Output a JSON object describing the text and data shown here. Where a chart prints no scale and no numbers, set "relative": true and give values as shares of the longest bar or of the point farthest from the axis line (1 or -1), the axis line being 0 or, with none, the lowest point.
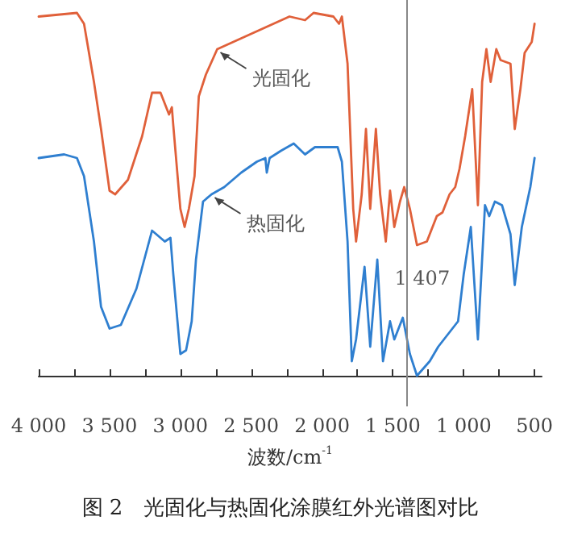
{
  "chart_data": {
    "type": "line",
    "title": "图 2　光固化与热固化涂膜红外光谱图对比",
    "xlabel": "波数/cm$^{-1}$",
    "relative": true,
    "grid": false,
    "marker": "none",
    "tick_labels": "x",
    "xlim": [
      4000,
      450
    ],
    "xticks": [
      {
        "value": 4000,
        "label": "4 000"
      },
      {
        "value": 3750,
        "label": null
      },
      {
        "value": 3500,
        "label": "3 500"
      },
      {
        "value": 3250,
        "label": null
      },
      {
        "value": 3000,
        "label": "3 000"
      },
      {
        "value": 2750,
        "label": null
      },
      {
        "value": 2500,
        "label": "2 500"
      },
      {
        "value": 2250,
        "label": null
      },
      {
        "value": 2000,
        "label": "2 000"
      },
      {
        "value": 1750,
        "label": null
      },
      {
        "value": 1500,
        "label": "1 500"
      },
      {
        "value": 1250,
        "label": null
      },
      {
        "value": 1000,
        "label": "1 000"
      },
      {
        "value": 750,
        "label": null
      },
      {
        "value": 500,
        "label": "500"
      }
    ],
    "series": [
      {
        "color": "#e0603a",
        "x": [
          4000,
          3730,
          3680,
          3610,
          3560,
          3500,
          3460,
          3370,
          3270,
          3200,
          3140,
          3080,
          3060,
          3050,
          3000,
          2970,
          2940,
          2900,
          2870,
          2820,
          2740,
          2570,
          2400,
          2230,
          2120,
          2060,
          1920,
          1880,
          1860,
          1820,
          1780,
          1760,
          1720,
          1690,
          1660,
          1620,
          1590,
          1550,
          1520,
          1490,
          1450,
          1420,
          1380,
          1330,
          1260,
          1190,
          1150,
          1100,
          1060,
          1030,
          990,
          940,
          900,
          870,
          840,
          810,
          770,
          740,
          670,
          640,
          600,
          570,
          520,
          500
        ],
        "values": [
          0.99,
          1.0,
          0.97,
          0.81,
          0.68,
          0.51,
          0.5,
          0.54,
          0.66,
          0.78,
          0.78,
          0.72,
          0.74,
          0.69,
          0.46,
          0.41,
          0.46,
          0.55,
          0.77,
          0.83,
          0.9,
          0.93,
          0.96,
          0.99,
          0.98,
          1.0,
          0.99,
          0.97,
          0.99,
          0.86,
          0.46,
          0.37,
          0.5,
          0.68,
          0.46,
          0.68,
          0.5,
          0.37,
          0.51,
          0.41,
          0.48,
          0.52,
          0.46,
          0.36,
          0.37,
          0.44,
          0.45,
          0.5,
          0.52,
          0.57,
          0.66,
          0.79,
          0.47,
          0.81,
          0.9,
          0.81,
          0.9,
          0.87,
          0.86,
          0.68,
          0.79,
          0.89,
          0.92,
          0.97
        ]
      },
      {
        "color": "#2f7fd0",
        "x": [
          4000,
          3820,
          3730,
          3680,
          3610,
          3560,
          3500,
          3420,
          3310,
          3200,
          3110,
          3070,
          3050,
          3000,
          2960,
          2920,
          2890,
          2840,
          2780,
          2690,
          2570,
          2460,
          2400,
          2390,
          2370,
          2290,
          2200,
          2120,
          2050,
          1890,
          1860,
          1820,
          1790,
          1760,
          1700,
          1660,
          1610,
          1570,
          1520,
          1490,
          1430,
          1380,
          1330,
          1240,
          1180,
          1100,
          1040,
          1000,
          950,
          900,
          850,
          820,
          780,
          730,
          670,
          640,
          590,
          530,
          500
        ],
        "values": [
          0.6,
          0.61,
          0.6,
          0.55,
          0.37,
          0.19,
          0.13,
          0.14,
          0.24,
          0.4,
          0.37,
          0.38,
          0.28,
          0.06,
          0.07,
          0.15,
          0.32,
          0.48,
          0.5,
          0.52,
          0.56,
          0.59,
          0.6,
          0.56,
          0.6,
          0.62,
          0.64,
          0.61,
          0.63,
          0.63,
          0.59,
          0.37,
          0.04,
          0.1,
          0.3,
          0.08,
          0.32,
          0.04,
          0.15,
          0.1,
          0.16,
          0.06,
          0.0,
          0.04,
          0.08,
          0.12,
          0.15,
          0.28,
          0.41,
          0.1,
          0.47,
          0.44,
          0.48,
          0.47,
          0.39,
          0.25,
          0.41,
          0.52,
          0.6
        ]
      }
    ],
    "ref_lines": [
      {
        "axis": "x",
        "value": 1407,
        "label": "1 407",
        "color": "#888888"
      }
    ],
    "annotations": [
      {
        "text": "光固化",
        "x": 2740,
        "y": 0.9
      },
      {
        "text": "热固化",
        "x": 2780,
        "y": 0.5
      }
    ]
  }
}
